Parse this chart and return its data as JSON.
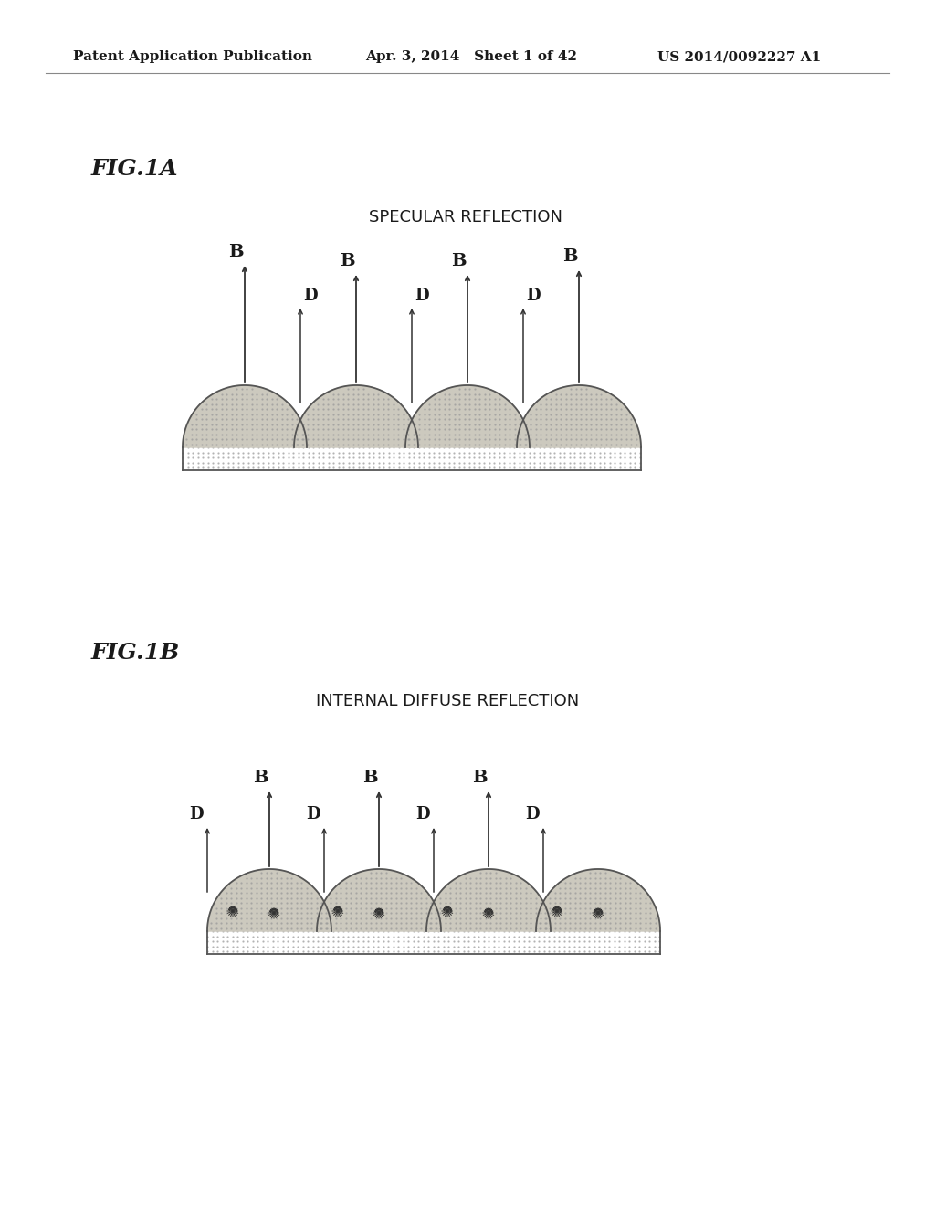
{
  "bg_color": "#ffffff",
  "header_left": "Patent Application Publication",
  "header_mid": "Apr. 3, 2014   Sheet 1 of 42",
  "header_right": "US 2014/0092227 A1",
  "fig1a_label": "FIG.1A",
  "fig1a_title": "SPECULAR REFLECTION",
  "fig1b_label": "FIG.1B",
  "fig1b_title": "INTERNAL DIFFUSE REFLECTION",
  "text_color": "#1a1a1a",
  "dome_fill": "#ccc9be",
  "dot_color": "#999999",
  "dome_edge": "#555555",
  "arrow_color": "#333333"
}
